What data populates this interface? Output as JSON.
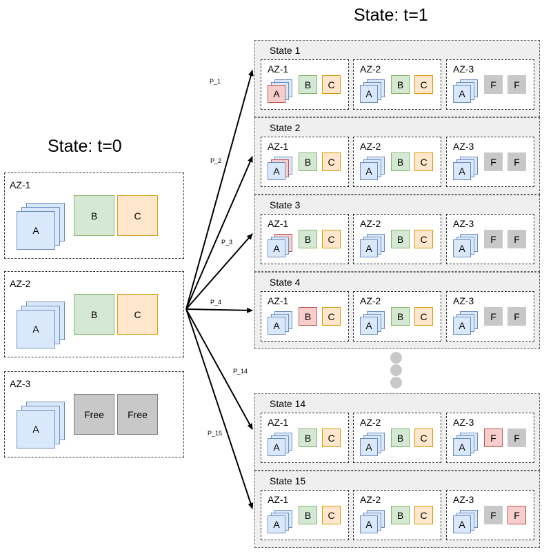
{
  "titles": {
    "left": "State:  t=0",
    "right": "State:  t=1"
  },
  "initial": {
    "zones": [
      {
        "name": "AZ-1",
        "nodes": [
          {
            "label": "A"
          },
          {
            "label": "B"
          },
          {
            "label": "C"
          }
        ]
      },
      {
        "name": "AZ-2",
        "nodes": [
          {
            "label": "A"
          },
          {
            "label": "B"
          },
          {
            "label": "C"
          }
        ]
      },
      {
        "name": "AZ-3",
        "nodes": [
          {
            "label": "A"
          },
          {
            "label": "Free"
          },
          {
            "label": "Free"
          }
        ]
      }
    ]
  },
  "states": [
    {
      "label": "State 1",
      "edge": "P_1",
      "zones": [
        {
          "name": "AZ-1",
          "a": "A",
          "n2": "B",
          "n3": "C",
          "a_red": "front"
        },
        {
          "name": "AZ-2",
          "a": "A",
          "n2": "B",
          "n3": "C"
        },
        {
          "name": "AZ-3",
          "a": "A",
          "n2": "F",
          "n3": "F"
        }
      ]
    },
    {
      "label": "State 2",
      "edge": "P_2",
      "zones": [
        {
          "name": "AZ-1",
          "a": "A",
          "n2": "B",
          "n3": "C",
          "a_red": "middle"
        },
        {
          "name": "AZ-2",
          "a": "A",
          "n2": "B",
          "n3": "C"
        },
        {
          "name": "AZ-3",
          "a": "A",
          "n2": "F",
          "n3": "F"
        }
      ]
    },
    {
      "label": "State 3",
      "edge": "P_3",
      "zones": [
        {
          "name": "AZ-1",
          "a": "A",
          "n2": "B",
          "n3": "C",
          "a_red": "back"
        },
        {
          "name": "AZ-2",
          "a": "A",
          "n2": "B",
          "n3": "C"
        },
        {
          "name": "AZ-3",
          "a": "A",
          "n2": "F",
          "n3": "F"
        }
      ]
    },
    {
      "label": "State 4",
      "edge": "P_4",
      "zones": [
        {
          "name": "AZ-1",
          "a": "A",
          "n2": "B",
          "n3": "C",
          "n2_red": true
        },
        {
          "name": "AZ-2",
          "a": "A",
          "n2": "B",
          "n3": "C"
        },
        {
          "name": "AZ-3",
          "a": "A",
          "n2": "F",
          "n3": "F"
        }
      ]
    },
    {
      "label": "State 14",
      "edge": "P_14",
      "zones": [
        {
          "name": "AZ-1",
          "a": "A",
          "n2": "B",
          "n3": "C"
        },
        {
          "name": "AZ-2",
          "a": "A",
          "n2": "B",
          "n3": "C"
        },
        {
          "name": "AZ-3",
          "a": "A",
          "n2": "F",
          "n3": "F",
          "n2_red": true
        }
      ]
    },
    {
      "label": "State 15",
      "edge": "P_15",
      "zones": [
        {
          "name": "AZ-1",
          "a": "A",
          "n2": "B",
          "n3": "C"
        },
        {
          "name": "AZ-2",
          "a": "A",
          "n2": "B",
          "n3": "C"
        },
        {
          "name": "AZ-3",
          "a": "A",
          "n2": "F",
          "n3": "F",
          "n3_red": true
        }
      ]
    }
  ]
}
